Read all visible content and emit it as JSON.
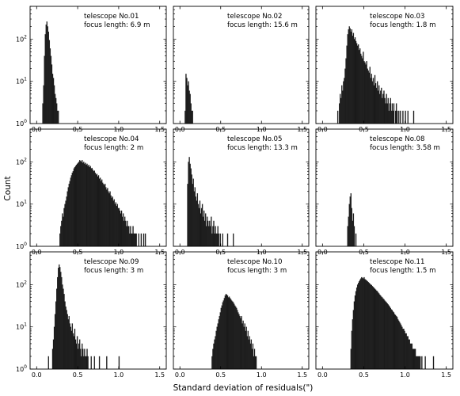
{
  "figure": {
    "xlabel": "Standard deviation of residuals(\")",
    "ylabel": "Count"
  },
  "axes": {
    "x_ticks": [
      0.0,
      0.5,
      1.0,
      1.5
    ],
    "x_tick_labels": [
      "0.0",
      "0.5",
      "1.0",
      "1.5"
    ],
    "xlim": [
      -0.08,
      1.58
    ],
    "y_scale": "log",
    "ylim": [
      1,
      600
    ],
    "y_ticks": [
      1,
      10,
      100
    ],
    "y_tick_base": "10",
    "y_tick_exponents": [
      "0",
      "1",
      "2"
    ]
  },
  "chart_data": [
    {
      "type": "bar",
      "label_line1": "telescope No.01",
      "label_line2": "focus length: 6.9 m",
      "bin_width": 0.01,
      "x": [
        0.07,
        0.08,
        0.09,
        0.1,
        0.11,
        0.12,
        0.13,
        0.14,
        0.15,
        0.16,
        0.17,
        0.18,
        0.19,
        0.2,
        0.21,
        0.22,
        0.23,
        0.24,
        0.25,
        0.26,
        0.28,
        0.3
      ],
      "values": [
        3,
        8,
        40,
        130,
        220,
        260,
        200,
        150,
        95,
        60,
        40,
        25,
        15,
        12,
        8,
        5,
        4,
        3,
        2,
        2,
        1,
        1
      ]
    },
    {
      "type": "bar",
      "label_line1": "telescope No.02",
      "label_line2": "focus length: 15.6 m",
      "bin_width": 0.01,
      "x": [
        0.06,
        0.07,
        0.08,
        0.09,
        0.1,
        0.11,
        0.12,
        0.13,
        0.14,
        0.15,
        0.2,
        0.24,
        0.28
      ],
      "values": [
        2,
        15,
        12,
        8,
        10,
        6,
        5,
        3,
        2,
        2,
        1,
        1,
        1
      ]
    },
    {
      "type": "bar",
      "label_line1": "telescope No.03",
      "label_line2": "focus length: 1.8 m",
      "bin_width": 0.01,
      "x": [
        0.17,
        0.18,
        0.19,
        0.2,
        0.21,
        0.22,
        0.23,
        0.24,
        0.25,
        0.26,
        0.27,
        0.28,
        0.29,
        0.3,
        0.31,
        0.32,
        0.33,
        0.34,
        0.35,
        0.36,
        0.37,
        0.38,
        0.39,
        0.4,
        0.41,
        0.42,
        0.43,
        0.44,
        0.45,
        0.46,
        0.47,
        0.48,
        0.49,
        0.5,
        0.51,
        0.52,
        0.53,
        0.54,
        0.55,
        0.56,
        0.57,
        0.58,
        0.59,
        0.6,
        0.61,
        0.62,
        0.63,
        0.64,
        0.65,
        0.66,
        0.67,
        0.68,
        0.69,
        0.7,
        0.71,
        0.72,
        0.73,
        0.74,
        0.75,
        0.76,
        0.77,
        0.78,
        0.79,
        0.8,
        0.81,
        0.82,
        0.83,
        0.84,
        0.85,
        0.86,
        0.87,
        0.88,
        0.89,
        0.9,
        0.91,
        0.92,
        0.93,
        0.94,
        0.95,
        0.96,
        0.97,
        0.98,
        0.99,
        1.0,
        1.01,
        1.02,
        1.03,
        1.04,
        1.05,
        1.07,
        1.1,
        1.13,
        1.16,
        1.2,
        1.25,
        1.28
      ],
      "values": [
        1,
        2,
        1,
        3,
        5,
        4,
        8,
        6,
        10,
        12,
        20,
        35,
        70,
        130,
        170,
        200,
        180,
        150,
        170,
        120,
        140,
        100,
        110,
        90,
        80,
        70,
        75,
        55,
        60,
        45,
        40,
        35,
        50,
        30,
        28,
        25,
        30,
        20,
        18,
        16,
        22,
        12,
        15,
        10,
        12,
        8,
        14,
        9,
        7,
        10,
        6,
        8,
        5,
        6,
        7,
        4,
        5,
        6,
        4,
        3,
        5,
        3,
        4,
        2,
        3,
        4,
        2,
        3,
        2,
        3,
        1,
        2,
        3,
        2,
        1,
        2,
        1,
        2,
        1,
        1,
        2,
        1,
        1,
        2,
        1,
        1,
        2,
        1,
        1,
        1,
        2,
        1,
        1,
        1,
        1,
        1
      ]
    },
    {
      "type": "bar",
      "label_line1": "telescope No.04",
      "label_line2": "focus length: 2 m",
      "bin_width": 0.01,
      "x": [
        0.27,
        0.28,
        0.29,
        0.3,
        0.31,
        0.32,
        0.33,
        0.34,
        0.35,
        0.36,
        0.37,
        0.38,
        0.39,
        0.4,
        0.41,
        0.42,
        0.43,
        0.44,
        0.45,
        0.46,
        0.47,
        0.48,
        0.49,
        0.5,
        0.51,
        0.52,
        0.53,
        0.54,
        0.55,
        0.56,
        0.57,
        0.58,
        0.59,
        0.6,
        0.61,
        0.62,
        0.63,
        0.64,
        0.65,
        0.66,
        0.67,
        0.68,
        0.69,
        0.7,
        0.71,
        0.72,
        0.73,
        0.74,
        0.75,
        0.76,
        0.77,
        0.78,
        0.79,
        0.8,
        0.81,
        0.82,
        0.83,
        0.84,
        0.85,
        0.86,
        0.87,
        0.88,
        0.89,
        0.9,
        0.91,
        0.92,
        0.93,
        0.94,
        0.95,
        0.96,
        0.97,
        0.98,
        0.99,
        1.0,
        1.01,
        1.02,
        1.03,
        1.04,
        1.05,
        1.06,
        1.07,
        1.08,
        1.09,
        1.1,
        1.11,
        1.12,
        1.13,
        1.14,
        1.15,
        1.16,
        1.17,
        1.18,
        1.19,
        1.2,
        1.21,
        1.22,
        1.24,
        1.27,
        1.3,
        1.32,
        1.35,
        1.4,
        1.45
      ],
      "values": [
        1,
        2,
        3,
        4,
        6,
        5,
        8,
        10,
        12,
        15,
        20,
        25,
        30,
        35,
        42,
        48,
        55,
        60,
        70,
        75,
        80,
        85,
        90,
        95,
        100,
        110,
        105,
        100,
        110,
        95,
        100,
        90,
        95,
        85,
        90,
        80,
        85,
        75,
        80,
        70,
        72,
        65,
        60,
        62,
        55,
        50,
        52,
        45,
        48,
        40,
        42,
        35,
        38,
        32,
        30,
        28,
        30,
        25,
        22,
        24,
        20,
        18,
        20,
        16,
        14,
        15,
        12,
        13,
        10,
        11,
        9,
        10,
        8,
        8,
        7,
        6,
        7,
        5,
        6,
        4,
        5,
        4,
        3,
        4,
        3,
        3,
        2,
        3,
        2,
        2,
        3,
        2,
        2,
        2,
        2,
        1,
        2,
        2,
        2,
        2,
        1,
        1,
        1
      ]
    },
    {
      "type": "bar",
      "label_line1": "telescope No.05",
      "label_line2": "focus length: 13.3 m",
      "bin_width": 0.01,
      "x": [
        0.09,
        0.1,
        0.11,
        0.12,
        0.13,
        0.14,
        0.15,
        0.16,
        0.17,
        0.18,
        0.19,
        0.2,
        0.21,
        0.22,
        0.23,
        0.24,
        0.25,
        0.26,
        0.27,
        0.28,
        0.29,
        0.3,
        0.31,
        0.32,
        0.33,
        0.34,
        0.35,
        0.36,
        0.37,
        0.38,
        0.39,
        0.4,
        0.41,
        0.42,
        0.43,
        0.44,
        0.45,
        0.46,
        0.47,
        0.48,
        0.49,
        0.5,
        0.52,
        0.54,
        0.56,
        0.58,
        0.6,
        0.62,
        0.65
      ],
      "values": [
        30,
        100,
        130,
        90,
        70,
        50,
        30,
        40,
        20,
        25,
        15,
        12,
        18,
        10,
        8,
        12,
        6,
        8,
        10,
        5,
        7,
        4,
        6,
        3,
        5,
        4,
        3,
        4,
        3,
        5,
        2,
        3,
        4,
        2,
        3,
        2,
        2,
        3,
        2,
        1,
        2,
        1,
        2,
        1,
        1,
        2,
        1,
        1,
        2
      ]
    },
    {
      "type": "bar",
      "label_line1": "telescope No.08",
      "label_line2": "focus length: 3.58 m",
      "bin_width": 0.01,
      "x": [
        0.3,
        0.31,
        0.32,
        0.33,
        0.34,
        0.35,
        0.36,
        0.37,
        0.38,
        0.4
      ],
      "values": [
        3,
        5,
        10,
        15,
        18,
        8,
        4,
        6,
        3,
        2
      ]
    },
    {
      "type": "bar",
      "label_line1": "telescope No.09",
      "label_line2": "focus length: 3 m",
      "bin_width": 0.01,
      "x": [
        0.14,
        0.17,
        0.19,
        0.2,
        0.21,
        0.22,
        0.23,
        0.24,
        0.25,
        0.26,
        0.27,
        0.28,
        0.29,
        0.3,
        0.31,
        0.32,
        0.33,
        0.34,
        0.35,
        0.36,
        0.37,
        0.38,
        0.39,
        0.4,
        0.41,
        0.42,
        0.43,
        0.44,
        0.45,
        0.46,
        0.47,
        0.48,
        0.49,
        0.5,
        0.51,
        0.52,
        0.53,
        0.54,
        0.55,
        0.56,
        0.57,
        0.58,
        0.59,
        0.6,
        0.61,
        0.62,
        0.64,
        0.66,
        0.68,
        0.7,
        0.72,
        0.74,
        0.76,
        0.78,
        0.8,
        0.82,
        0.85,
        0.88,
        0.9,
        0.94,
        0.98,
        1.0,
        1.02,
        1.06,
        1.1,
        1.15,
        1.2,
        1.25,
        1.45
      ],
      "values": [
        2,
        1,
        3,
        5,
        10,
        20,
        40,
        80,
        150,
        250,
        300,
        260,
        200,
        150,
        100,
        80,
        60,
        40,
        30,
        25,
        20,
        15,
        18,
        12,
        10,
        8,
        12,
        7,
        6,
        9,
        5,
        4,
        6,
        3,
        4,
        5,
        3,
        2,
        4,
        3,
        2,
        3,
        2,
        2,
        3,
        2,
        1,
        2,
        1,
        2,
        1,
        1,
        2,
        1,
        1,
        1,
        2,
        1,
        1,
        1,
        1,
        2,
        1,
        1,
        1,
        1,
        1,
        1,
        1
      ]
    },
    {
      "type": "bar",
      "label_line1": "telescope No.10",
      "label_line2": "focus length: 3 m",
      "bin_width": 0.01,
      "x": [
        0.38,
        0.39,
        0.4,
        0.41,
        0.42,
        0.43,
        0.44,
        0.45,
        0.46,
        0.47,
        0.48,
        0.49,
        0.5,
        0.51,
        0.52,
        0.53,
        0.54,
        0.55,
        0.56,
        0.57,
        0.58,
        0.59,
        0.6,
        0.61,
        0.62,
        0.63,
        0.64,
        0.65,
        0.66,
        0.67,
        0.68,
        0.69,
        0.7,
        0.71,
        0.72,
        0.73,
        0.74,
        0.75,
        0.76,
        0.77,
        0.78,
        0.79,
        0.8,
        0.81,
        0.82,
        0.83,
        0.84,
        0.85,
        0.86,
        0.87,
        0.88,
        0.89,
        0.9,
        0.91,
        0.92,
        0.93,
        0.95,
        1.0,
        1.05
      ],
      "values": [
        1,
        2,
        3,
        4,
        5,
        6,
        8,
        10,
        12,
        15,
        18,
        22,
        28,
        32,
        38,
        42,
        48,
        55,
        60,
        58,
        55,
        50,
        52,
        48,
        45,
        42,
        40,
        38,
        35,
        32,
        30,
        28,
        25,
        22,
        20,
        18,
        16,
        18,
        12,
        14,
        10,
        12,
        8,
        10,
        6,
        8,
        5,
        6,
        4,
        5,
        3,
        4,
        2,
        3,
        2,
        2,
        1,
        1,
        1
      ]
    },
    {
      "type": "bar",
      "label_line1": "telescope No.11",
      "label_line2": "focus length: 1.5 m",
      "bin_width": 0.01,
      "x": [
        0.33,
        0.34,
        0.35,
        0.36,
        0.37,
        0.38,
        0.39,
        0.4,
        0.41,
        0.42,
        0.43,
        0.44,
        0.45,
        0.46,
        0.47,
        0.48,
        0.49,
        0.5,
        0.51,
        0.52,
        0.53,
        0.54,
        0.55,
        0.56,
        0.57,
        0.58,
        0.59,
        0.6,
        0.61,
        0.62,
        0.63,
        0.64,
        0.65,
        0.66,
        0.67,
        0.68,
        0.69,
        0.7,
        0.71,
        0.72,
        0.73,
        0.74,
        0.75,
        0.76,
        0.77,
        0.78,
        0.79,
        0.8,
        0.81,
        0.82,
        0.83,
        0.84,
        0.85,
        0.86,
        0.87,
        0.88,
        0.89,
        0.9,
        0.91,
        0.92,
        0.93,
        0.94,
        0.95,
        0.96,
        0.97,
        0.98,
        0.99,
        1.0,
        1.01,
        1.02,
        1.03,
        1.04,
        1.05,
        1.06,
        1.07,
        1.08,
        1.09,
        1.1,
        1.11,
        1.12,
        1.13,
        1.14,
        1.15,
        1.16,
        1.17,
        1.18,
        1.19,
        1.2,
        1.22,
        1.24,
        1.27,
        1.3,
        1.34,
        1.38,
        1.42,
        1.46,
        1.5
      ],
      "values": [
        1,
        3,
        8,
        15,
        25,
        40,
        55,
        70,
        85,
        100,
        110,
        120,
        130,
        140,
        150,
        145,
        140,
        150,
        135,
        130,
        125,
        120,
        115,
        110,
        105,
        100,
        98,
        92,
        88,
        84,
        80,
        76,
        72,
        70,
        65,
        62,
        58,
        55,
        52,
        50,
        47,
        45,
        42,
        40,
        38,
        36,
        34,
        32,
        30,
        28,
        26,
        25,
        23,
        22,
        20,
        19,
        18,
        17,
        15,
        14,
        13,
        12,
        11,
        10,
        9,
        9,
        8,
        7,
        7,
        6,
        6,
        5,
        5,
        4,
        4,
        4,
        3,
        3,
        3,
        3,
        2,
        2,
        2,
        2,
        2,
        2,
        1,
        2,
        1,
        2,
        1,
        1,
        2,
        1,
        1,
        1,
        1
      ]
    }
  ]
}
